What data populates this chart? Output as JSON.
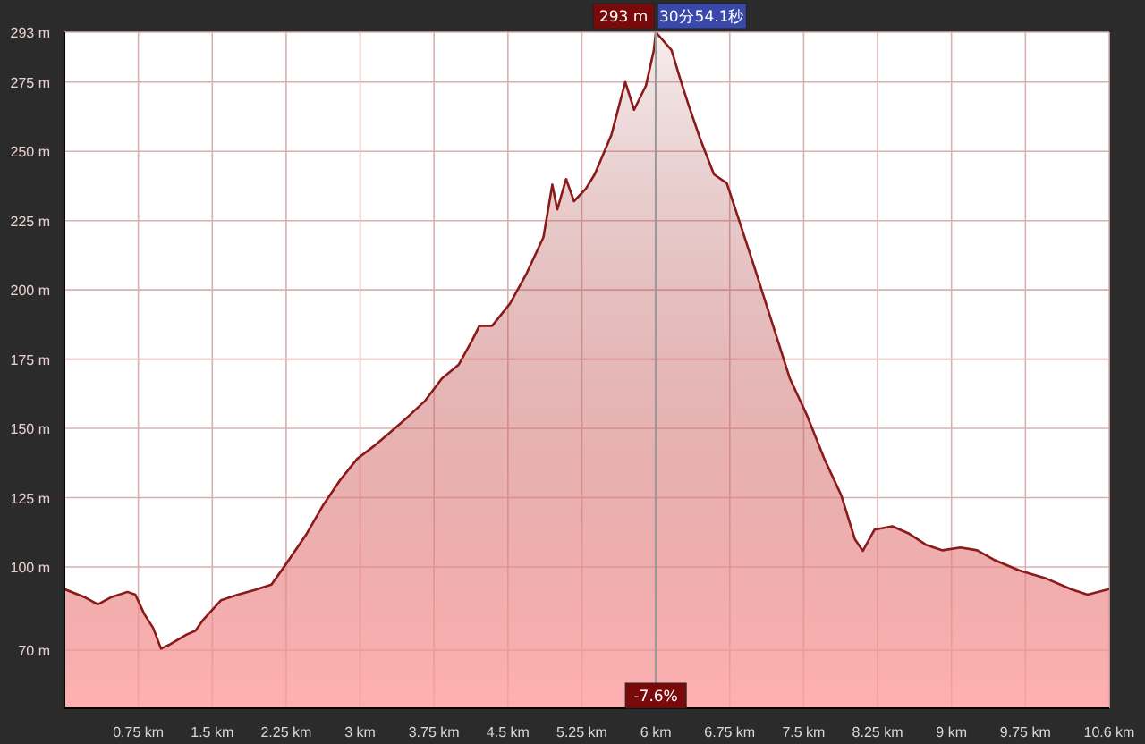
{
  "chart_data": {
    "type": "area",
    "x": [
      0,
      0.21,
      0.34,
      0.47,
      0.64,
      0.72,
      0.81,
      0.9,
      0.98,
      1.07,
      1.24,
      1.33,
      1.41,
      1.59,
      1.76,
      1.93,
      2.1,
      2.24,
      2.45,
      2.62,
      2.79,
      2.97,
      3.14,
      3.31,
      3.48,
      3.66,
      3.83,
      4.0,
      4.14,
      4.21,
      4.34,
      4.52,
      4.69,
      4.86,
      4.95,
      5.0,
      5.09,
      5.17,
      5.29,
      5.38,
      5.55,
      5.69,
      5.78,
      5.9,
      5.98,
      6.0,
      6.16,
      6.24,
      6.33,
      6.45,
      6.59,
      6.72,
      6.84,
      7.02,
      7.19,
      7.36,
      7.53,
      7.71,
      7.88,
      8.02,
      8.1,
      8.22,
      8.4,
      8.57,
      8.74,
      8.91,
      9.09,
      9.26,
      9.43,
      9.69,
      9.95,
      10.21,
      10.38,
      10.6
    ],
    "series": [
      {
        "color": "#8b1a1a",
        "values": [
          92,
          89,
          86.5,
          89,
          91,
          90,
          83,
          78,
          70.5,
          72,
          75.6,
          77,
          81,
          88,
          90,
          91.7,
          93.6,
          100.6,
          111.5,
          122,
          131,
          139,
          143.6,
          148.7,
          154,
          160,
          168,
          173,
          182,
          187,
          187,
          195,
          206,
          219,
          238,
          229,
          240,
          232,
          236.5,
          241.7,
          256,
          275,
          265,
          273.7,
          286.5,
          293,
          286.5,
          277,
          267,
          254.5,
          241.7,
          238.5,
          225.6,
          206,
          187,
          168,
          155,
          139,
          126,
          110,
          105.8,
          113.5,
          114.7,
          112,
          108,
          106,
          107,
          106,
          102.6,
          98.7,
          96,
          92,
          90,
          92
        ]
      }
    ],
    "xlim": [
      0,
      10.6
    ],
    "xticks": [
      {
        "value": 0.75,
        "label": "0.75 km"
      },
      {
        "value": 1.5,
        "label": "1.5 km"
      },
      {
        "value": 2.25,
        "label": "2.25 km"
      },
      {
        "value": 3,
        "label": "3 km"
      },
      {
        "value": 3.75,
        "label": "3.75 km"
      },
      {
        "value": 4.5,
        "label": "4.5 km"
      },
      {
        "value": 5.25,
        "label": "5.25 km"
      },
      {
        "value": 6,
        "label": "6 km"
      },
      {
        "value": 6.75,
        "label": "6.75 km"
      },
      {
        "value": 7.5,
        "label": "7.5 km"
      },
      {
        "value": 8.25,
        "label": "8.25 km"
      },
      {
        "value": 9,
        "label": "9 km"
      },
      {
        "value": 9.75,
        "label": "9.75 km"
      },
      {
        "value": 10.6,
        "label": "10.6 km"
      }
    ],
    "ylim": [
      49,
      293
    ],
    "yticks": [
      {
        "value": 70,
        "label": "70 m"
      },
      {
        "value": 100,
        "label": "100 m"
      },
      {
        "value": 125,
        "label": "125 m"
      },
      {
        "value": 150,
        "label": "150 m"
      },
      {
        "value": 175,
        "label": "175 m"
      },
      {
        "value": 200,
        "label": "200 m"
      },
      {
        "value": 225,
        "label": "225 m"
      },
      {
        "value": 250,
        "label": "250 m"
      },
      {
        "value": 275,
        "label": "275 m"
      },
      {
        "value": 293,
        "label": "293 m"
      }
    ],
    "grid": true,
    "ref_lines": [
      {
        "axis": "x",
        "value": 6,
        "label": "30分54.1秒",
        "color": "#999999"
      }
    ],
    "annotations": [
      {
        "text": "293 m",
        "x": 6,
        "y": 293
      },
      {
        "text": "-7.6%",
        "x": 6,
        "y": 49
      }
    ]
  }
}
